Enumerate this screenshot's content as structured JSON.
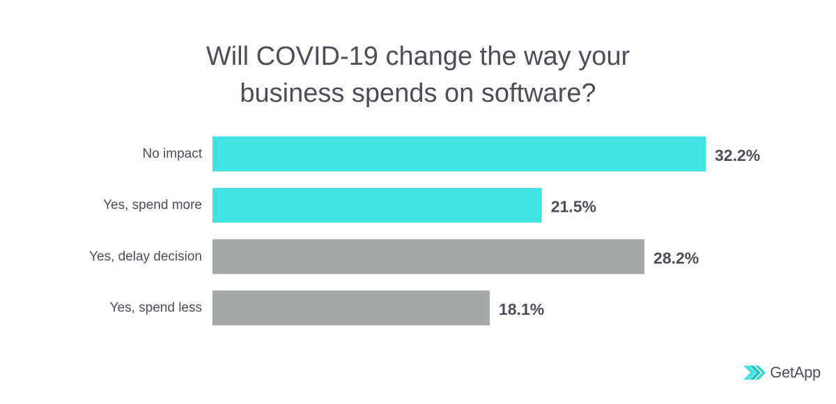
{
  "chart_data": {
    "type": "bar",
    "orientation": "horizontal",
    "title_lines": [
      "Will COVID-19 change the way your",
      "business spends on software?"
    ],
    "categories": [
      "No impact",
      "Yes, spend more",
      "Yes, delay decision",
      "Yes, spend less"
    ],
    "values": [
      32.2,
      21.5,
      28.2,
      18.1
    ],
    "value_labels": [
      "32.2%",
      "21.5%",
      "28.2%",
      "18.1%"
    ],
    "bar_colors": [
      "#41e2e2",
      "#41e2e2",
      "#a5a8a9",
      "#a5a8a9"
    ],
    "xlim": [
      0,
      32.2
    ],
    "xlabel": "",
    "ylabel": "",
    "grid": false,
    "legend": "none"
  },
  "brand": {
    "name": "GetApp",
    "accent": "#41e2e2",
    "text_color": "#4b4e57"
  }
}
